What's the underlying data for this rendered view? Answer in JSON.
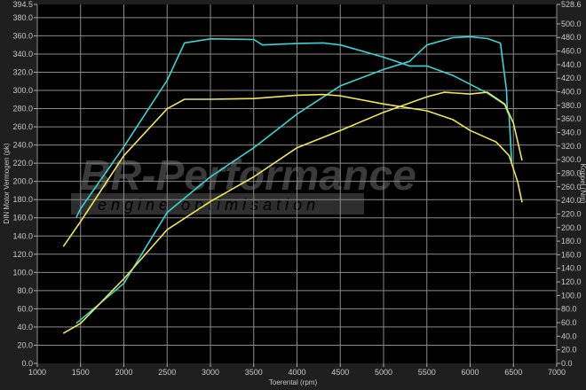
{
  "chart_data": {
    "type": "line",
    "xlabel": "Toerental (rpm)",
    "ylabel": "DIN Motor Vermogen (pk)",
    "y2label": "Koppel (Nm)",
    "xlim": [
      1000,
      7000
    ],
    "ylim": [
      0,
      394.5
    ],
    "y2lim": [
      0,
      528.6
    ],
    "xticks": [
      1000,
      1500,
      2000,
      2500,
      3000,
      3500,
      4000,
      4500,
      5000,
      5500,
      6000,
      6500,
      7000
    ],
    "yticks": [
      "0.0",
      "20.0",
      "40.0",
      "60.0",
      "80.0",
      "100.0",
      "120.0",
      "140.0",
      "160.0",
      "180.0",
      "200.0",
      "220.0",
      "240.0",
      "260.0",
      "280.0",
      "300.0",
      "320.0",
      "340.0",
      "360.0",
      "380.0",
      "394.5"
    ],
    "y2ticks": [
      "0.0",
      "20.0",
      "40.0",
      "60.0",
      "80.0",
      "100.0",
      "120.0",
      "140.0",
      "160.0",
      "180.0",
      "200.0",
      "220.0",
      "240.0",
      "260.0",
      "280.0",
      "300.0",
      "320.0",
      "340.0",
      "360.0",
      "380.0",
      "400.0",
      "420.0",
      "440.0",
      "460.0",
      "480.0",
      "500.0",
      "528.6"
    ],
    "grid": true,
    "watermark": {
      "line1": "BR-Performance",
      "line2": "engine optimisation"
    },
    "series": [
      {
        "color": "#35d6d6",
        "axis": "y2",
        "points": [
          [
            1450,
            215
          ],
          [
            1500,
            228
          ],
          [
            2000,
            319
          ],
          [
            2500,
            417
          ],
          [
            2700,
            472
          ],
          [
            3000,
            478
          ],
          [
            3500,
            477
          ],
          [
            3600,
            469
          ],
          [
            4000,
            471
          ],
          [
            4300,
            472
          ],
          [
            4500,
            469
          ],
          [
            5000,
            451
          ],
          [
            5300,
            438
          ],
          [
            5500,
            438
          ],
          [
            5800,
            424
          ],
          [
            6000,
            411
          ],
          [
            6200,
            398
          ],
          [
            6400,
            381
          ],
          [
            6450,
            365
          ],
          [
            6480,
            297
          ]
        ]
      },
      {
        "color": "#35d6d6",
        "axis": "y",
        "points": [
          [
            1450,
            44
          ],
          [
            2000,
            88
          ],
          [
            2500,
            166
          ],
          [
            3000,
            205
          ],
          [
            3500,
            237
          ],
          [
            4000,
            274
          ],
          [
            4500,
            305
          ],
          [
            5000,
            323
          ],
          [
            5300,
            332
          ],
          [
            5500,
            350
          ],
          [
            5800,
            358
          ],
          [
            6000,
            359
          ],
          [
            6200,
            357
          ],
          [
            6350,
            352
          ],
          [
            6420,
            300
          ],
          [
            6430,
            276
          ]
        ]
      },
      {
        "color": "#f0e850",
        "axis": "y2",
        "points": [
          [
            1300,
            172
          ],
          [
            1500,
            209
          ],
          [
            2000,
            306
          ],
          [
            2500,
            375
          ],
          [
            2700,
            389
          ],
          [
            3000,
            389
          ],
          [
            3500,
            390
          ],
          [
            4000,
            395
          ],
          [
            4300,
            396
          ],
          [
            4500,
            394
          ],
          [
            5000,
            382
          ],
          [
            5500,
            372
          ],
          [
            5800,
            359
          ],
          [
            6000,
            343
          ],
          [
            6300,
            326
          ],
          [
            6450,
            306
          ],
          [
            6550,
            267
          ],
          [
            6600,
            237
          ]
        ]
      },
      {
        "color": "#f0e850",
        "axis": "y",
        "points": [
          [
            1300,
            33
          ],
          [
            1500,
            44
          ],
          [
            2000,
            93
          ],
          [
            2500,
            147
          ],
          [
            3000,
            178
          ],
          [
            3500,
            205
          ],
          [
            4000,
            237
          ],
          [
            4500,
            256
          ],
          [
            5000,
            276
          ],
          [
            5500,
            293
          ],
          [
            5700,
            298
          ],
          [
            6000,
            296
          ],
          [
            6200,
            298
          ],
          [
            6400,
            285
          ],
          [
            6500,
            264
          ],
          [
            6600,
            223
          ]
        ]
      }
    ]
  }
}
